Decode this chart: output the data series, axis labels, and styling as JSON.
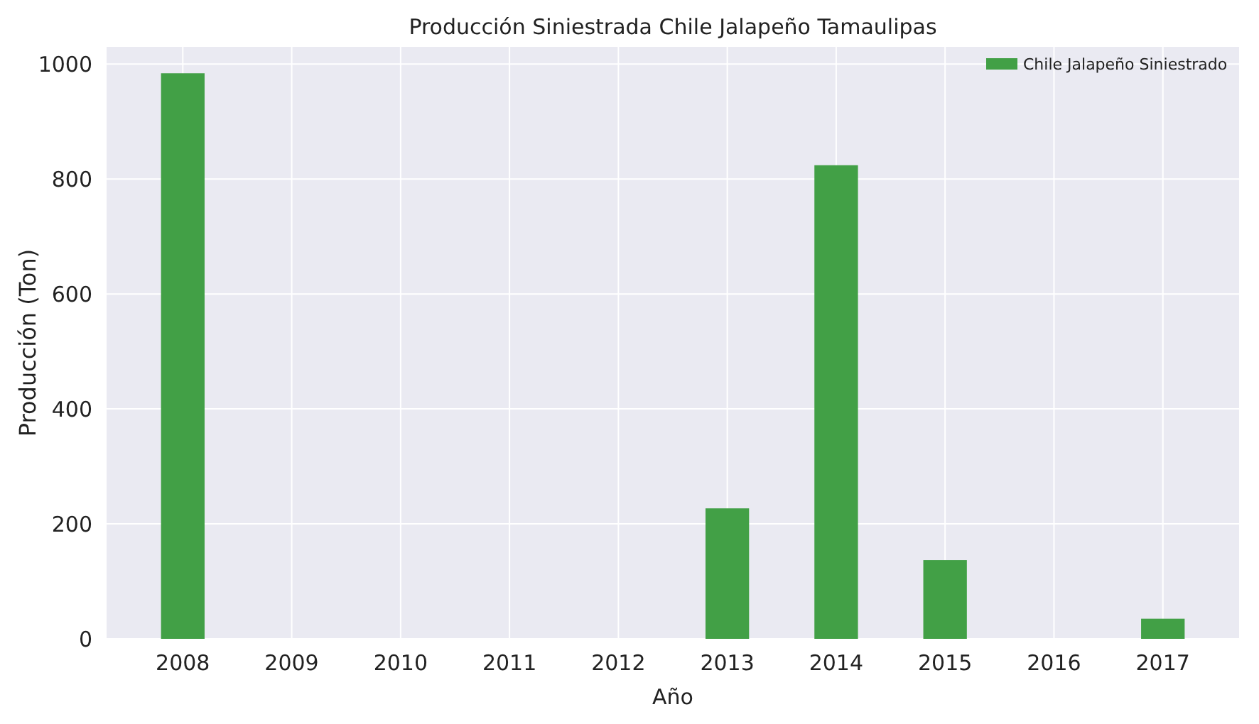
{
  "chart_data": {
    "type": "bar",
    "title": "Producción Siniestrada Chile Jalapeño Tamaulipas",
    "xlabel": "Año",
    "ylabel": "Producción (Ton)",
    "categories": [
      "2008",
      "2009",
      "2010",
      "2011",
      "2012",
      "2013",
      "2014",
      "2015",
      "2016",
      "2017"
    ],
    "series": [
      {
        "name": "Chile Jalapeño Siniestrado",
        "color": "#42a046",
        "values": [
          984,
          0,
          0,
          0,
          0,
          227,
          824,
          137,
          0,
          35
        ]
      }
    ],
    "ylim": [
      0,
      1030
    ],
    "yticks": [
      0,
      200,
      400,
      600,
      800,
      1000
    ],
    "grid": true,
    "legend": "top right"
  }
}
